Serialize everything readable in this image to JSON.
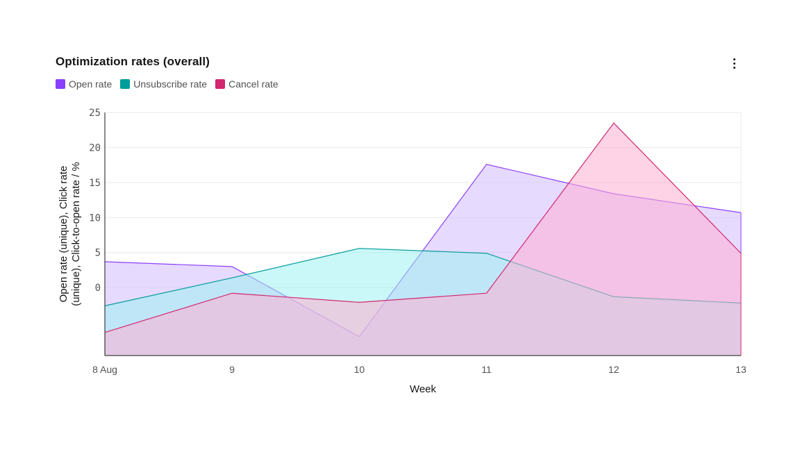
{
  "card": {
    "title": "Optimization rates (overall)",
    "menu_icon": "overflow-menu-vertical-icon"
  },
  "legend": [
    {
      "label": "Open rate",
      "color": "#8a3ffc"
    },
    {
      "label": "Unsubscribe rate",
      "color": "#009d9a"
    },
    {
      "label": "Cancel rate",
      "color": "#d12771"
    }
  ],
  "chart_data": {
    "type": "area",
    "title": "Optimization rates (overall)",
    "xlabel": "Week",
    "ylabel_lines": [
      "Open rate (unique), Click rate",
      "(unique), Click-to-open rate / %"
    ],
    "categories": [
      "8 Aug",
      "9",
      "10",
      "11",
      "12",
      "13"
    ],
    "yticks": [
      "25",
      "20",
      "15",
      "10",
      "5",
      "0"
    ],
    "ylim": [
      -9.7,
      25
    ],
    "grid": true,
    "legend_position": "top-left",
    "series": [
      {
        "name": "Open rate",
        "color": "#8a3ffc",
        "fill": "#d4bbff",
        "values": [
          3.7,
          3.0,
          -7.0,
          17.6,
          13.4,
          10.7
        ]
      },
      {
        "name": "Unsubscribe rate",
        "color": "#009d9a",
        "fill": "#9ef0f0",
        "values": [
          -2.6,
          1.4,
          5.6,
          4.9,
          -1.3,
          -2.2
        ]
      },
      {
        "name": "Cancel rate",
        "color": "#d12771",
        "fill": "#ffafd2",
        "values": [
          -6.4,
          -0.8,
          -2.1,
          -0.8,
          23.5,
          4.9
        ]
      }
    ]
  }
}
